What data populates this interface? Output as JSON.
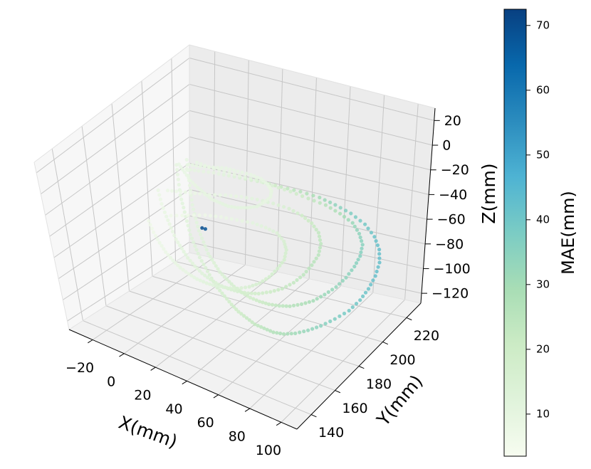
{
  "chart_data": {
    "type": "scatter",
    "projection": "3d",
    "grid": true,
    "x_axis": {
      "label": "X(mm)",
      "ticks": [
        -20,
        0,
        20,
        40,
        60,
        80,
        100
      ],
      "tick_labels": [
        "−20",
        "0",
        "20",
        "40",
        "60",
        "80",
        "100"
      ],
      "range": [
        -35,
        110
      ]
    },
    "y_axis": {
      "label": "Y(mm)",
      "ticks": [
        140,
        160,
        180,
        200,
        220
      ],
      "tick_labels": [
        "140",
        "160",
        "180",
        "200",
        "220"
      ],
      "range": [
        128,
        232
      ]
    },
    "z_axis": {
      "label": "Z(mm)",
      "ticks": [
        20,
        0,
        -20,
        -40,
        -60,
        -80,
        -100,
        -120
      ],
      "tick_labels": [
        "20",
        "0",
        "−20",
        "−40",
        "−60",
        "−80",
        "−100",
        "−120"
      ],
      "range": [
        -128,
        30
      ]
    },
    "colorbar": {
      "label": "MAE(mm)",
      "colormap": "GnBu",
      "range": [
        3.5,
        72.5
      ],
      "ticks": [
        70,
        60,
        50,
        40,
        30,
        20,
        10
      ],
      "tick_labels": [
        "70",
        "60",
        "50",
        "40",
        "30",
        "20",
        "10"
      ],
      "colors": [
        "#f7fcf0",
        "#e0f3db",
        "#ccebc5",
        "#a8ddb5",
        "#7bccc4",
        "#4eb3d3",
        "#2b8cbe",
        "#0868ac",
        "#084081"
      ]
    },
    "series": [
      {
        "points": [
          [
            -25,
            210,
            -42,
            10
          ],
          [
            -20,
            205,
            -48,
            10
          ],
          [
            -15,
            200,
            -55,
            11
          ],
          [
            -10,
            196,
            -60,
            12
          ],
          [
            -5,
            192,
            -66,
            12
          ],
          [
            0,
            188,
            -72,
            13
          ],
          [
            5,
            185,
            -77,
            13
          ],
          [
            10,
            182,
            -82,
            14
          ],
          [
            15,
            180,
            -87,
            15
          ],
          [
            20,
            178,
            -92,
            16
          ],
          [
            25,
            176,
            -96,
            17
          ],
          [
            30,
            175,
            -100,
            18
          ],
          [
            35,
            174,
            -104,
            19
          ],
          [
            40,
            173,
            -107,
            20
          ],
          [
            45,
            173,
            -110,
            22
          ],
          [
            50,
            173,
            -113,
            23
          ],
          [
            55,
            174,
            -115,
            25
          ],
          [
            60,
            175,
            -117,
            27
          ],
          [
            65,
            177,
            -118,
            29
          ],
          [
            70,
            180,
            -118,
            31
          ],
          [
            75,
            184,
            -117,
            33
          ],
          [
            80,
            188,
            -115,
            35
          ],
          [
            85,
            193,
            -112,
            37
          ],
          [
            90,
            198,
            -108,
            39
          ],
          [
            93,
            203,
            -103,
            40
          ],
          [
            95,
            207,
            -97,
            41
          ],
          [
            96,
            211,
            -90,
            42
          ],
          [
            96,
            214,
            -82,
            42
          ],
          [
            94,
            216,
            -74,
            42
          ],
          [
            90,
            217,
            -66,
            41
          ],
          [
            84,
            217,
            -58,
            39
          ],
          [
            76,
            216,
            -51,
            37
          ],
          [
            68,
            214,
            -45,
            34
          ],
          [
            60,
            212,
            -40,
            30
          ],
          [
            50,
            210,
            -37,
            26
          ],
          [
            40,
            208,
            -35,
            22
          ],
          [
            30,
            207,
            -34,
            18
          ],
          [
            20,
            206,
            -34,
            15
          ],
          [
            10,
            206,
            -35,
            12
          ],
          [
            0,
            207,
            -37,
            10
          ],
          [
            -10,
            208,
            -40,
            10
          ],
          [
            -18,
            209,
            -42,
            10
          ]
        ]
      },
      {
        "points": [
          [
            -22,
            214,
            -40,
            9
          ],
          [
            -17,
            209,
            -47,
            9
          ],
          [
            -12,
            204,
            -53,
            10
          ],
          [
            -7,
            199,
            -59,
            11
          ],
          [
            -2,
            195,
            -65,
            11
          ],
          [
            3,
            191,
            -70,
            12
          ],
          [
            8,
            188,
            -75,
            13
          ],
          [
            13,
            185,
            -80,
            13
          ],
          [
            18,
            183,
            -84,
            14
          ],
          [
            23,
            181,
            -88,
            15
          ],
          [
            28,
            180,
            -91,
            16
          ],
          [
            33,
            179,
            -94,
            17
          ],
          [
            38,
            179,
            -97,
            18
          ],
          [
            43,
            179,
            -99,
            19
          ],
          [
            48,
            180,
            -101,
            21
          ],
          [
            53,
            181,
            -102,
            22
          ],
          [
            58,
            183,
            -103,
            24
          ],
          [
            63,
            185,
            -103,
            26
          ],
          [
            68,
            188,
            -102,
            28
          ],
          [
            73,
            191,
            -100,
            30
          ],
          [
            77,
            195,
            -97,
            32
          ],
          [
            81,
            199,
            -93,
            33
          ],
          [
            84,
            203,
            -88,
            34
          ],
          [
            86,
            207,
            -82,
            35
          ],
          [
            87,
            210,
            -76,
            36
          ],
          [
            86,
            213,
            -70,
            35
          ],
          [
            83,
            214,
            -63,
            34
          ],
          [
            78,
            215,
            -57,
            32
          ],
          [
            71,
            214,
            -51,
            29
          ],
          [
            63,
            213,
            -46,
            26
          ],
          [
            54,
            211,
            -42,
            22
          ],
          [
            44,
            210,
            -39,
            18
          ],
          [
            34,
            209,
            -37,
            15
          ],
          [
            24,
            209,
            -36,
            12
          ],
          [
            14,
            209,
            -36,
            10
          ],
          [
            4,
            210,
            -37,
            9
          ],
          [
            -6,
            211,
            -38,
            9
          ],
          [
            -15,
            213,
            -39,
            9
          ]
        ]
      },
      {
        "points": [
          [
            -20,
            190,
            -45,
            8
          ],
          [
            -15,
            186,
            -51,
            8
          ],
          [
            -10,
            183,
            -57,
            9
          ],
          [
            -5,
            180,
            -62,
            10
          ],
          [
            0,
            177,
            -67,
            10
          ],
          [
            5,
            175,
            -71,
            11
          ],
          [
            10,
            173,
            -75,
            12
          ],
          [
            15,
            172,
            -79,
            12
          ],
          [
            20,
            171,
            -82,
            13
          ],
          [
            25,
            171,
            -85,
            14
          ],
          [
            30,
            171,
            -87,
            15
          ],
          [
            35,
            172,
            -89,
            16
          ],
          [
            40,
            173,
            -90,
            17
          ],
          [
            45,
            175,
            -91,
            18
          ],
          [
            50,
            177,
            -91,
            19
          ],
          [
            55,
            180,
            -90,
            20
          ],
          [
            60,
            183,
            -88,
            22
          ],
          [
            64,
            187,
            -85,
            23
          ],
          [
            67,
            191,
            -81,
            24
          ],
          [
            69,
            195,
            -76,
            25
          ],
          [
            70,
            199,
            -71,
            25
          ],
          [
            69,
            202,
            -65,
            24
          ],
          [
            66,
            204,
            -59,
            23
          ],
          [
            61,
            205,
            -54,
            21
          ],
          [
            55,
            205,
            -50,
            19
          ],
          [
            48,
            204,
            -46,
            16
          ],
          [
            40,
            202,
            -43,
            14
          ],
          [
            32,
            200,
            -41,
            12
          ],
          [
            24,
            198,
            -40,
            10
          ],
          [
            16,
            196,
            -40,
            9
          ],
          [
            8,
            194,
            -41,
            8
          ],
          [
            0,
            193,
            -42,
            8
          ],
          [
            -8,
            192,
            -43,
            8
          ],
          [
            -15,
            191,
            -44,
            8
          ]
        ]
      },
      {
        "points": [
          [
            -10,
            170,
            -50,
            7
          ],
          [
            -5,
            167,
            -55,
            7
          ],
          [
            0,
            165,
            -60,
            8
          ],
          [
            5,
            163,
            -64,
            8
          ],
          [
            10,
            162,
            -68,
            9
          ],
          [
            15,
            161,
            -71,
            10
          ],
          [
            20,
            161,
            -74,
            10
          ],
          [
            25,
            161,
            -76,
            11
          ],
          [
            30,
            162,
            -78,
            12
          ],
          [
            35,
            163,
            -79,
            13
          ],
          [
            40,
            165,
            -80,
            14
          ],
          [
            45,
            167,
            -80,
            15
          ],
          [
            50,
            170,
            -79,
            16
          ],
          [
            54,
            173,
            -77,
            17
          ],
          [
            57,
            177,
            -74,
            18
          ],
          [
            59,
            181,
            -70,
            18
          ],
          [
            60,
            185,
            -66,
            18
          ],
          [
            59,
            188,
            -61,
            17
          ],
          [
            56,
            190,
            -57,
            16
          ],
          [
            51,
            191,
            -53,
            14
          ],
          [
            45,
            190,
            -50,
            12
          ],
          [
            38,
            189,
            -48,
            11
          ],
          [
            30,
            187,
            -47,
            9
          ],
          [
            22,
            185,
            -46,
            8
          ],
          [
            14,
            183,
            -46,
            7
          ],
          [
            6,
            180,
            -47,
            7
          ],
          [
            -2,
            177,
            -48,
            7
          ]
        ]
      },
      {
        "points": [
          [
            -15,
            200,
            -30,
            9
          ],
          [
            -10,
            198,
            -33,
            9
          ],
          [
            -5,
            196,
            -36,
            9
          ],
          [
            0,
            195,
            -39,
            10
          ],
          [
            5,
            194,
            -41,
            10
          ],
          [
            10,
            193,
            -43,
            10
          ],
          [
            15,
            193,
            -44,
            11
          ],
          [
            20,
            193,
            -45,
            11
          ],
          [
            25,
            194,
            -45,
            11
          ],
          [
            30,
            195,
            -44,
            11
          ],
          [
            35,
            196,
            -42,
            11
          ],
          [
            38,
            198,
            -39,
            10
          ],
          [
            40,
            200,
            -36,
            10
          ],
          [
            39,
            202,
            -33,
            10
          ],
          [
            36,
            203,
            -30,
            9
          ],
          [
            31,
            204,
            -28,
            9
          ],
          [
            25,
            204,
            -27,
            9
          ],
          [
            18,
            203,
            -26,
            9
          ],
          [
            11,
            203,
            -26,
            9
          ],
          [
            4,
            202,
            -27,
            9
          ],
          [
            -3,
            201,
            -28,
            9
          ],
          [
            -10,
            201,
            -29,
            9
          ]
        ]
      },
      {
        "points": [
          [
            10,
            185,
            -60,
            70
          ],
          [
            12,
            185,
            -60,
            68
          ]
        ]
      }
    ]
  }
}
